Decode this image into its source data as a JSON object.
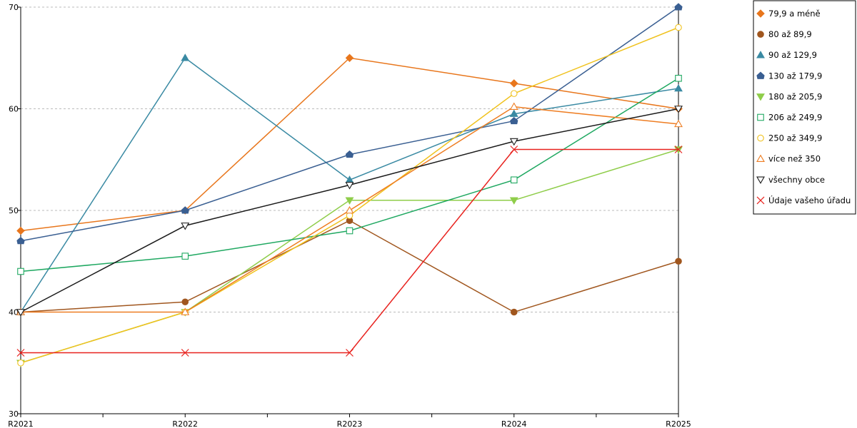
{
  "chart_data": {
    "type": "line",
    "categories": [
      "R2021",
      "R2022",
      "R2023",
      "R2024",
      "R2025"
    ],
    "ylim": [
      30,
      70
    ],
    "yticks": [
      30,
      40,
      50,
      60,
      70
    ],
    "grid": true,
    "legend_position": "right",
    "series": [
      {
        "name": "79,9 a méně",
        "values": [
          48,
          50,
          65,
          62.5,
          60
        ],
        "color": "#e8761c",
        "marker": "diamond",
        "filled": true
      },
      {
        "name": "80 až 89,9",
        "values": [
          40,
          41,
          49,
          40,
          45
        ],
        "color": "#a0561e",
        "marker": "circle",
        "filled": true
      },
      {
        "name": "90 až 129,9",
        "values": [
          40,
          65,
          53,
          59.5,
          62
        ],
        "color": "#3a8aa3",
        "marker": "triangle-up",
        "filled": true
      },
      {
        "name": "130 až 179,9",
        "values": [
          47,
          50,
          55.5,
          58.8,
          70
        ],
        "color": "#3a5f92",
        "marker": "house",
        "filled": true
      },
      {
        "name": "180 až 205,9",
        "values": [
          35,
          40,
          51,
          51,
          56
        ],
        "color": "#8fcd4a",
        "marker": "triangle-down",
        "filled": true
      },
      {
        "name": "206 až 249,9",
        "values": [
          44,
          45.5,
          48,
          53,
          63
        ],
        "color": "#1fa861",
        "marker": "square",
        "filled": false
      },
      {
        "name": "250 až 349,9",
        "values": [
          35,
          40,
          49.5,
          61.5,
          68
        ],
        "color": "#f0c21e",
        "marker": "circle",
        "filled": false
      },
      {
        "name": "více než 350",
        "values": [
          40,
          40,
          50,
          60.2,
          58.5
        ],
        "color": "#ee7d22",
        "marker": "triangle-up",
        "filled": false
      },
      {
        "name": "všechny obce",
        "values": [
          40,
          48.5,
          52.5,
          56.8,
          60
        ],
        "color": "#1a1a1a",
        "marker": "triangle-down",
        "filled": false
      },
      {
        "name": "Údaje vašeho úřadu",
        "values": [
          36,
          36,
          36,
          56,
          56
        ],
        "color": "#e8221e",
        "marker": "x",
        "filled": false
      }
    ]
  }
}
